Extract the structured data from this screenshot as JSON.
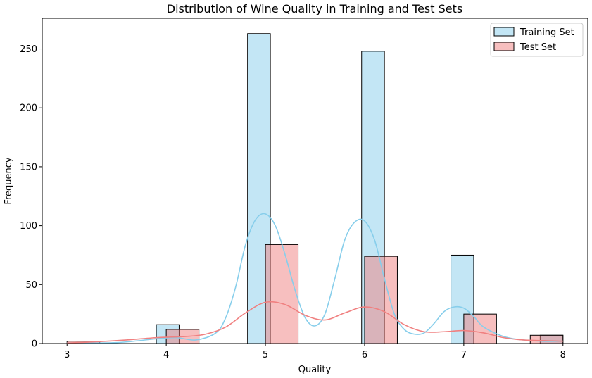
{
  "chart_data": {
    "type": "bar",
    "title": "Distribution of Wine Quality in Training and Test Sets",
    "xlabel": "Quality",
    "ylabel": "Frequency",
    "xlim": [
      2.75,
      8.25
    ],
    "ylim": [
      0,
      276
    ],
    "xticks": [
      "3",
      "4",
      "5",
      "6",
      "7",
      "8"
    ],
    "yticks": [
      "0",
      "50",
      "100",
      "150",
      "200",
      "250"
    ],
    "legend_position": "top-right",
    "series": [
      {
        "name": "Training Set",
        "fill": "#87ceeb",
        "fill_opacity": 0.5,
        "kde_color": "#87ceeb",
        "bins": [
          {
            "x0": 3.9,
            "x1": 4.13,
            "value": 16
          },
          {
            "x0": 4.82,
            "x1": 5.05,
            "value": 263
          },
          {
            "x0": 5.97,
            "x1": 6.2,
            "value": 248
          },
          {
            "x0": 6.87,
            "x1": 7.1,
            "value": 75
          },
          {
            "x0": 7.77,
            "x1": 8.0,
            "value": 7
          }
        ],
        "kde": [
          [
            3.0,
            0.5
          ],
          [
            3.5,
            0.8
          ],
          [
            3.9,
            4
          ],
          [
            4.1,
            5
          ],
          [
            4.3,
            3
          ],
          [
            4.5,
            9
          ],
          [
            4.6,
            22
          ],
          [
            4.7,
            48
          ],
          [
            4.8,
            84
          ],
          [
            4.9,
            105
          ],
          [
            5.0,
            110
          ],
          [
            5.1,
            100
          ],
          [
            5.2,
            75
          ],
          [
            5.3,
            45
          ],
          [
            5.4,
            22
          ],
          [
            5.5,
            15
          ],
          [
            5.6,
            25
          ],
          [
            5.7,
            55
          ],
          [
            5.8,
            88
          ],
          [
            5.9,
            103
          ],
          [
            6.0,
            104
          ],
          [
            6.1,
            88
          ],
          [
            6.2,
            55
          ],
          [
            6.3,
            25
          ],
          [
            6.4,
            12
          ],
          [
            6.5,
            8
          ],
          [
            6.6,
            9
          ],
          [
            6.7,
            17
          ],
          [
            6.8,
            27
          ],
          [
            6.9,
            31
          ],
          [
            7.0,
            30
          ],
          [
            7.1,
            23
          ],
          [
            7.2,
            14
          ],
          [
            7.4,
            6
          ],
          [
            7.6,
            3
          ],
          [
            7.8,
            2
          ],
          [
            8.0,
            2
          ]
        ]
      },
      {
        "name": "Test Set",
        "fill": "#f08080",
        "fill_opacity": 0.5,
        "kde_color": "#f08080",
        "bins": [
          {
            "x0": 3.0,
            "x1": 3.33,
            "value": 2
          },
          {
            "x0": 4.0,
            "x1": 4.33,
            "value": 12
          },
          {
            "x0": 5.0,
            "x1": 5.33,
            "value": 84
          },
          {
            "x0": 6.0,
            "x1": 6.33,
            "value": 74
          },
          {
            "x0": 7.0,
            "x1": 7.33,
            "value": 25
          },
          {
            "x0": 7.67,
            "x1": 8.0,
            "value": 7
          }
        ],
        "kde": [
          [
            3.0,
            0.5
          ],
          [
            3.3,
            1.5
          ],
          [
            3.6,
            3
          ],
          [
            3.9,
            5
          ],
          [
            4.2,
            6
          ],
          [
            4.4,
            8
          ],
          [
            4.6,
            14
          ],
          [
            4.8,
            26
          ],
          [
            5.0,
            35
          ],
          [
            5.2,
            33
          ],
          [
            5.4,
            24
          ],
          [
            5.6,
            20
          ],
          [
            5.8,
            26
          ],
          [
            6.0,
            31
          ],
          [
            6.2,
            27
          ],
          [
            6.4,
            16
          ],
          [
            6.6,
            10
          ],
          [
            6.8,
            10
          ],
          [
            7.0,
            11
          ],
          [
            7.2,
            9
          ],
          [
            7.4,
            5
          ],
          [
            7.6,
            3
          ],
          [
            7.8,
            2.5
          ],
          [
            8.0,
            2
          ]
        ]
      }
    ]
  }
}
